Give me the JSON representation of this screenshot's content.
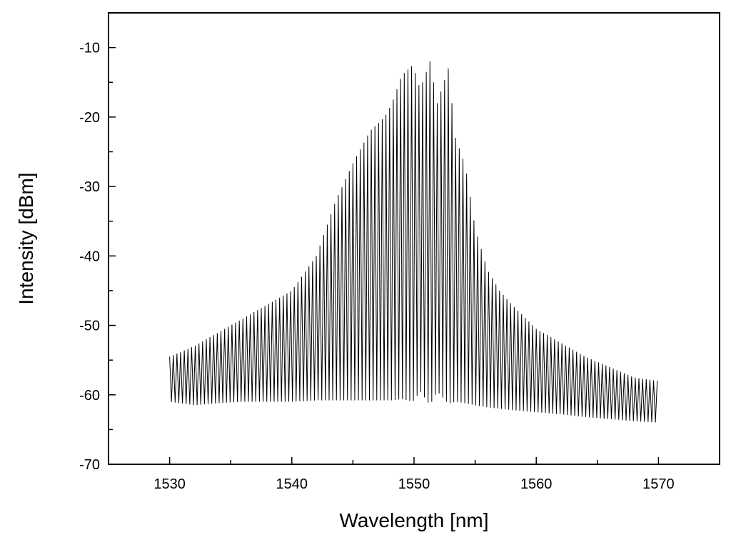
{
  "chart_data": {
    "type": "line",
    "title": "",
    "xlabel": "Wavelength [nm]",
    "ylabel": "Intensity [dBm]",
    "xlim": [
      1525,
      1575
    ],
    "ylim": [
      -70,
      -5
    ],
    "x_ticks": [
      1530,
      1540,
      1550,
      1560,
      1570
    ],
    "x_tick_labels": [
      "1530",
      "1540",
      "1550",
      "1560",
      "1570"
    ],
    "y_ticks": [
      -70,
      -60,
      -50,
      -40,
      -30,
      -20,
      -10
    ],
    "y_tick_labels": [
      "-70",
      "-60",
      "-50",
      "-40",
      "-30",
      "-20",
      "-10"
    ],
    "grid": false,
    "legend": "none",
    "line_color": "#000000",
    "mode_spacing_nm": 0.3,
    "series": [
      {
        "x": [
          1530,
          1532,
          1534,
          1536,
          1538,
          1540,
          1542,
          1543.6,
          1544.9,
          1546.4,
          1547.6,
          1548.2,
          1549.0,
          1549.9,
          1550.5,
          1551.3,
          1551.9,
          1552.8,
          1553.4,
          1554.2,
          1555.0,
          1556.0,
          1557.0,
          1558.0,
          1560.0,
          1562.0,
          1564.0,
          1566.0,
          1568.0,
          1570.0
        ],
        "upper_envelope": [
          -54.5,
          -53,
          -51,
          -49,
          -47,
          -45,
          -40,
          -32,
          -27,
          -22,
          -20,
          -18,
          -14,
          -12.5,
          -16,
          -12,
          -18,
          -13,
          -23,
          -27,
          -36,
          -42,
          -45,
          -47,
          -50.5,
          -52.5,
          -54.5,
          -56,
          -57.5,
          -58
        ],
        "lower_envelope": [
          -61,
          -61.5,
          -61.2,
          -61,
          -61,
          -61,
          -60.8,
          -60.8,
          -60.8,
          -60.8,
          -60.8,
          -60.8,
          -60.6,
          -61,
          -59.5,
          -61.5,
          -59.5,
          -61.3,
          -61,
          -61.2,
          -61.5,
          -61.8,
          -62,
          -62.2,
          -62.5,
          -62.8,
          -63.2,
          -63.5,
          -63.8,
          -64
        ]
      }
    ]
  }
}
